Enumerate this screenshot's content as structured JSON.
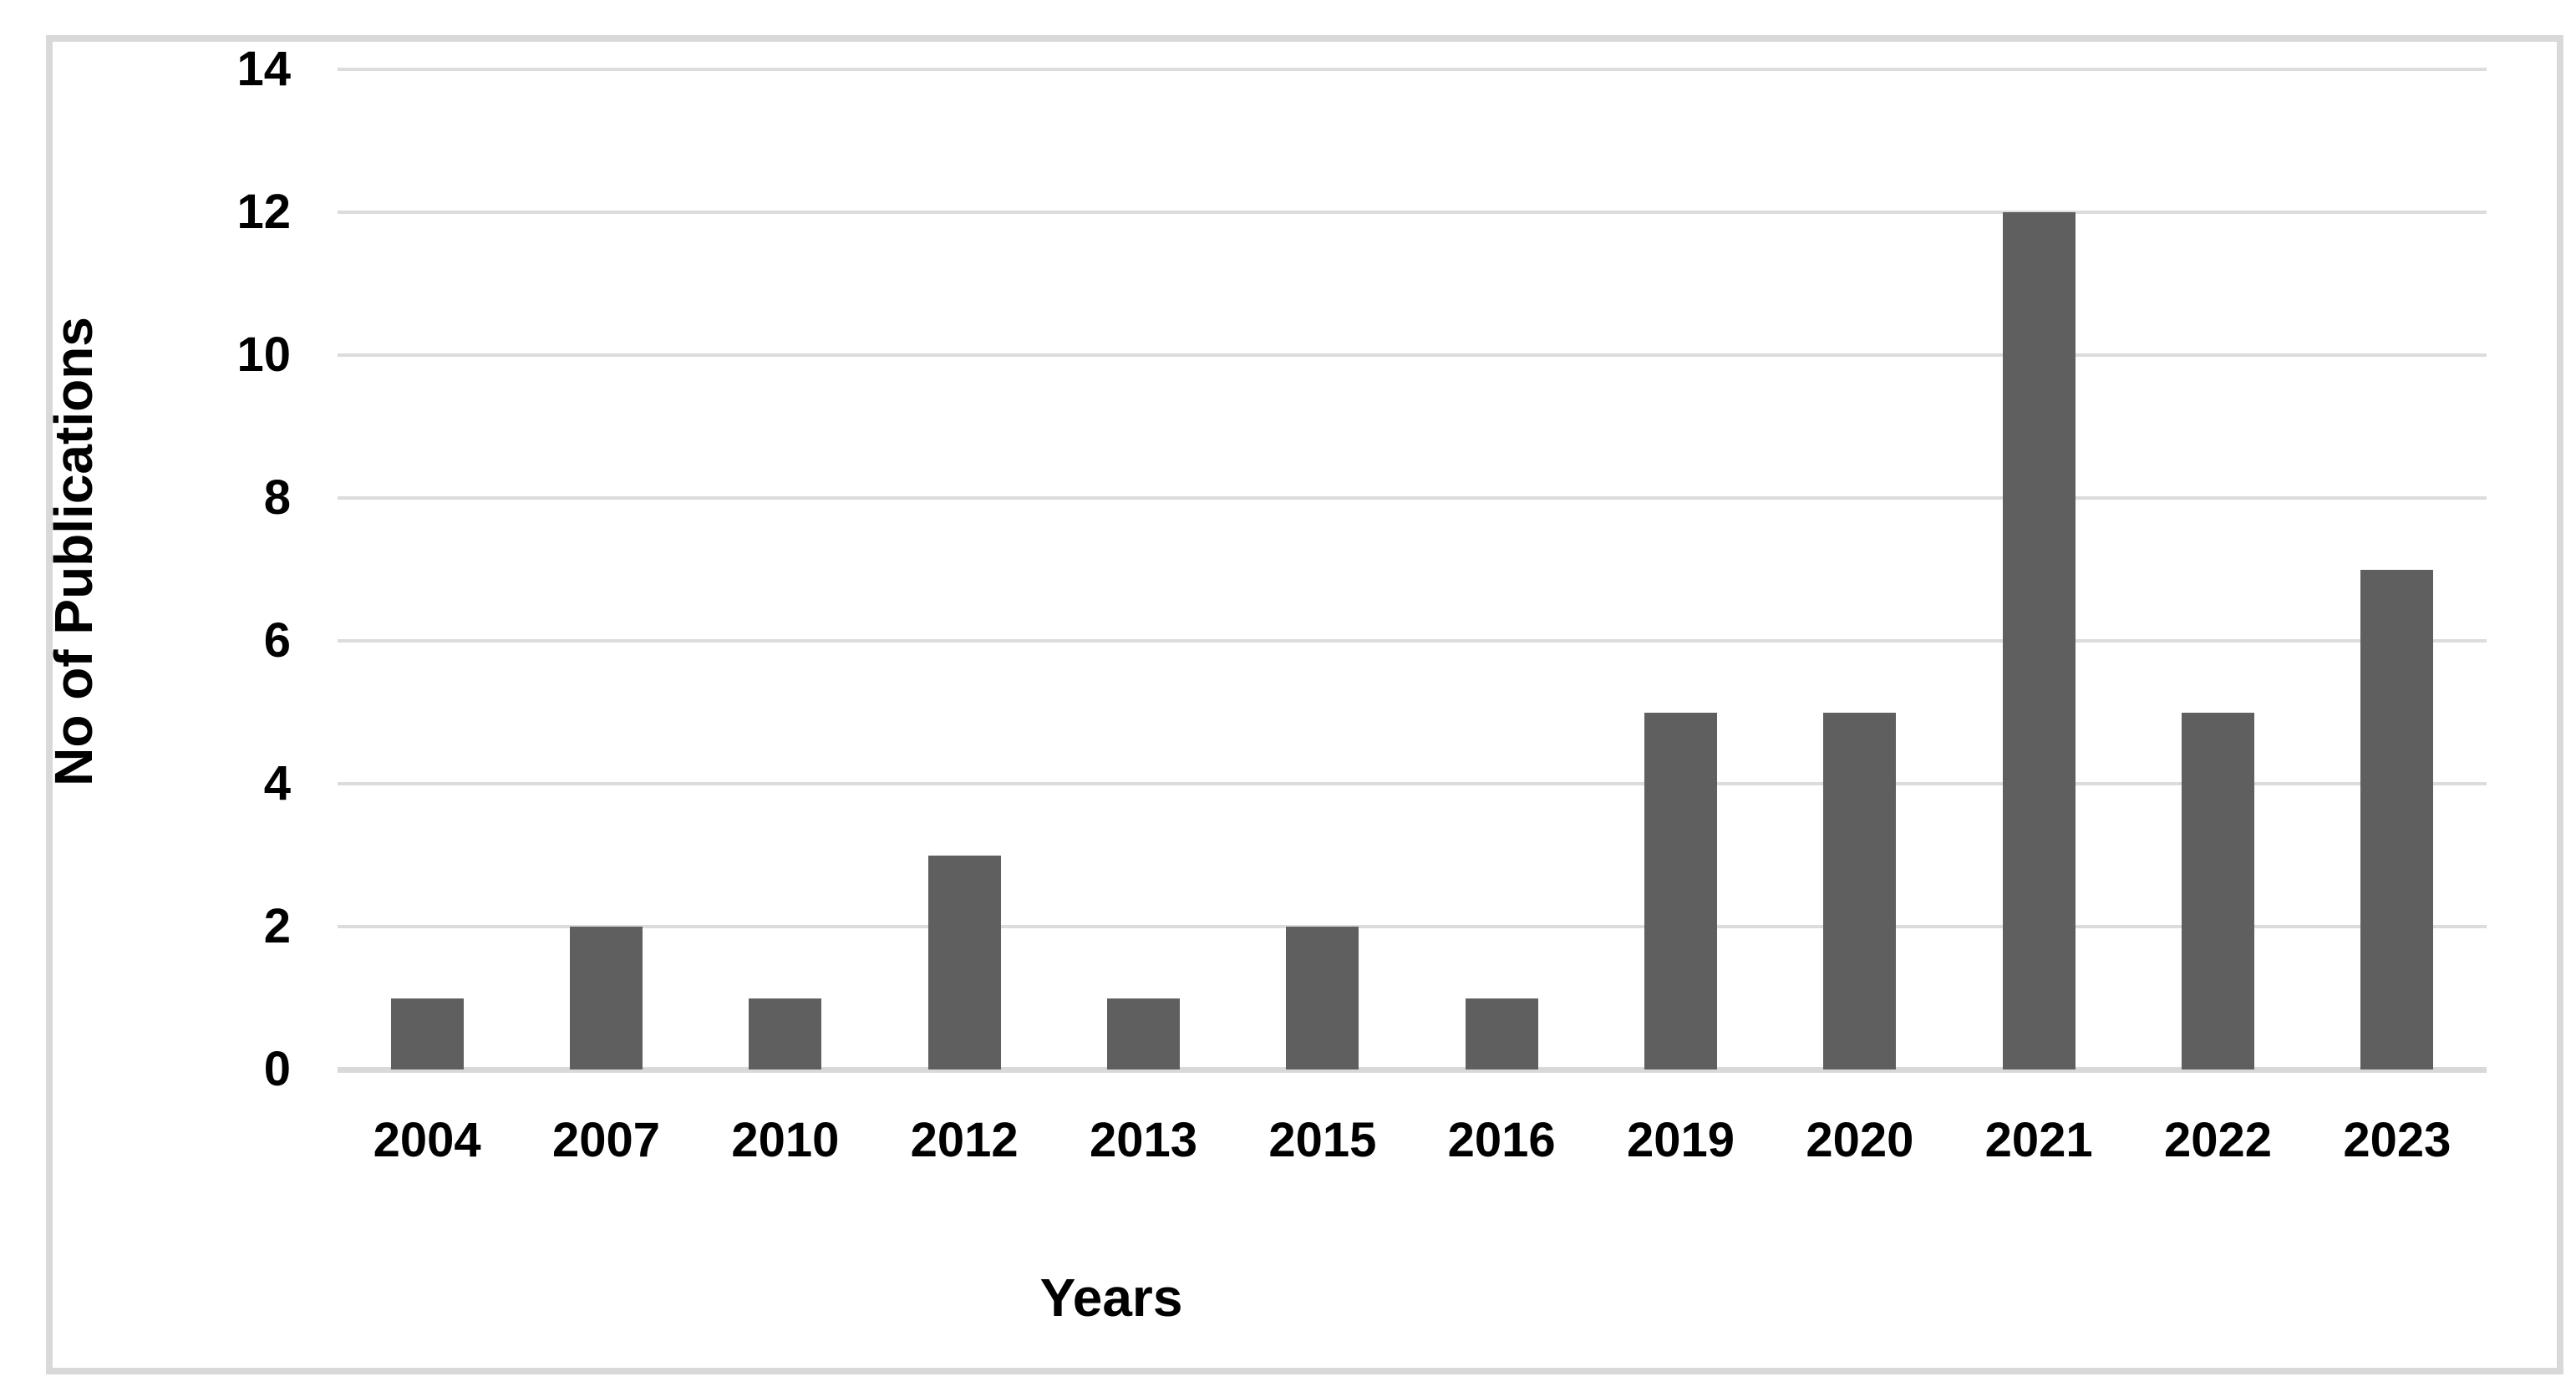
{
  "chart_data": {
    "type": "bar",
    "categories": [
      "2004",
      "2007",
      "2010",
      "2012",
      "2013",
      "2015",
      "2016",
      "2019",
      "2020",
      "2021",
      "2022",
      "2023"
    ],
    "values": [
      1,
      2,
      1,
      3,
      1,
      2,
      1,
      5,
      5,
      12,
      5,
      7
    ],
    "xlabel": "Years",
    "ylabel": "No of Publications",
    "ylim": [
      0,
      14
    ],
    "yticks": [
      0,
      2,
      4,
      6,
      8,
      10,
      12,
      14
    ],
    "grid": "horizontal",
    "legend_position": "none",
    "bar_color": "#5f5f5f",
    "gridline_color": "#dcdcdc",
    "axis_line_color": "#d9d9d9",
    "frame_border_color": "#d9d9d9",
    "background_color": "#ffffff",
    "text_color": "#000000"
  }
}
